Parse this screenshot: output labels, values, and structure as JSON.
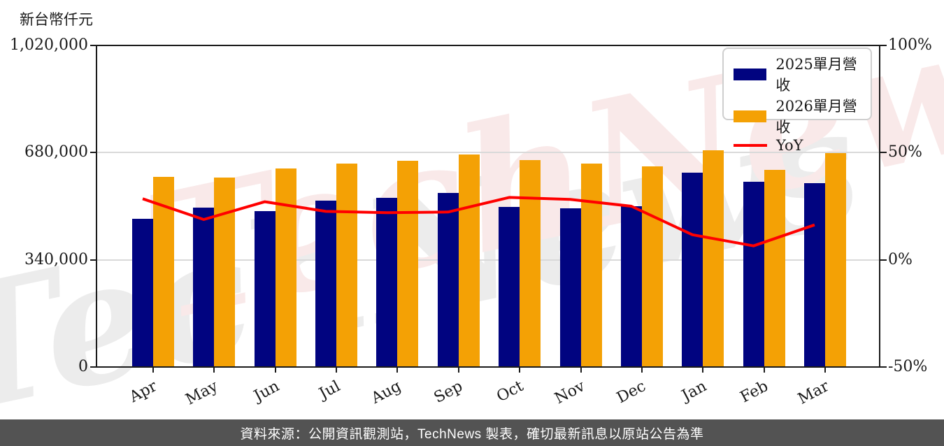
{
  "unit_label": "新台幣仟元",
  "watermark": {
    "text": "TechNews"
  },
  "footer": {
    "text": "資料來源：公開資訊觀測站，TechNews 製表，確切最新訊息以原站公告為準"
  },
  "colors": {
    "bar_2025": "#010480",
    "bar_2026": "#F4A105",
    "yoy_line": "#FF0000",
    "gridline": "#D9D9D9",
    "axis": "#1A1A1A",
    "tick_text": "#1A1A1A",
    "footer_bg": "#535353",
    "footer_text": "#FFFFFF",
    "watermark_red": "#F9E9E9",
    "watermark_gray": "#ECECEC",
    "legend_border": "#CFCFCF"
  },
  "chart_data": {
    "type": "bar",
    "title": "",
    "categories": [
      "Apr",
      "May",
      "Jun",
      "Jul",
      "Aug",
      "Sep",
      "Oct",
      "Nov",
      "Dec",
      "Jan",
      "Feb",
      "Mar"
    ],
    "series": [
      {
        "name": "2025單月營收",
        "type": "bar",
        "axis": "left",
        "values": [
          470000,
          505000,
          495000,
          527000,
          537000,
          552000,
          508000,
          503000,
          509000,
          616000,
          588000,
          584000
        ]
      },
      {
        "name": "2026單月營收",
        "type": "bar",
        "axis": "left",
        "values": [
          604000,
          600000,
          629000,
          646000,
          655000,
          675000,
          656000,
          645000,
          636000,
          688000,
          626000,
          679000
        ]
      },
      {
        "name": "YoY",
        "type": "line",
        "axis": "right",
        "values": [
          28.5,
          18.8,
          27.1,
          22.6,
          22.0,
          22.3,
          29.1,
          28.2,
          25.0,
          11.7,
          6.5,
          16.3
        ]
      }
    ],
    "left_axis": {
      "title": "新台幣仟元",
      "range": [
        0,
        1020000
      ],
      "tick_values": [
        0,
        340000,
        680000,
        1020000
      ],
      "tick_labels": [
        "0",
        "340,000",
        "680,000",
        "1,020,000"
      ]
    },
    "right_axis": {
      "range": [
        -50,
        100
      ],
      "tick_values": [
        -50,
        0,
        50,
        100
      ],
      "tick_labels": [
        "-50%",
        "0%",
        "50%",
        "100%"
      ]
    },
    "x_axis": {
      "rotation_deg": -28
    },
    "grid": {
      "horizontal_values": [
        340000,
        680000
      ]
    },
    "legend_position": "top-right",
    "legend_entries": [
      "2025單月營收",
      "2026單月營收",
      "YoY"
    ]
  }
}
